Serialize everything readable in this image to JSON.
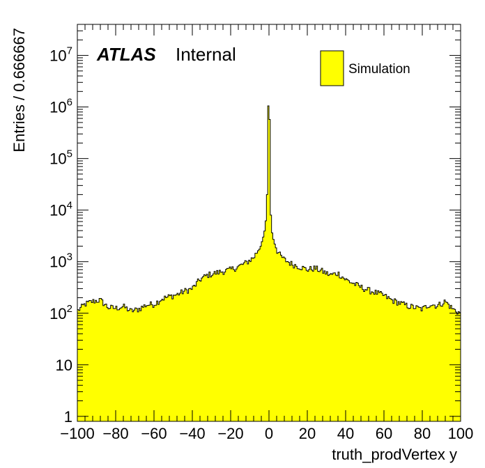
{
  "chart_data": {
    "type": "histogram",
    "scale_y": "log",
    "xlabel": "truth_prodVertex y",
    "ylabel": "Entries / 0.666667",
    "xlim": [
      -100,
      100
    ],
    "ylim": [
      0.8,
      40000000
    ],
    "x_ticks": [
      -100,
      -80,
      -60,
      -40,
      -20,
      0,
      20,
      40,
      60,
      80,
      100
    ],
    "y_ticks": [
      {
        "value": 1,
        "base": "1",
        "exp": ""
      },
      {
        "value": 10,
        "base": "10",
        "exp": ""
      },
      {
        "value": 100,
        "base": "10",
        "exp": "2"
      },
      {
        "value": 1000,
        "base": "10",
        "exp": "3"
      },
      {
        "value": 10000,
        "base": "10",
        "exp": "4"
      },
      {
        "value": 100000,
        "base": "10",
        "exp": "5"
      },
      {
        "value": 1000000,
        "base": "10",
        "exp": "6"
      },
      {
        "value": 10000000,
        "base": "10",
        "exp": "7"
      }
    ],
    "bin_width": 0.666667,
    "atlas_label": "ATLAS",
    "status_label": "Internal",
    "legend": {
      "label": "Simulation",
      "color": "#ffff00",
      "position": "top-right"
    },
    "fill_color": "#ffff00",
    "line_color": "#000000",
    "profile": {
      "x": [
        -100,
        -96,
        -92,
        -88,
        -84,
        -80,
        -76,
        -72,
        -68,
        -64,
        -60,
        -56,
        -52,
        -48,
        -44,
        -40,
        -36,
        -32,
        -28,
        -24,
        -20,
        -16,
        -12,
        -8,
        -6,
        -4,
        -3,
        -2,
        -1.4,
        -1,
        -0.6,
        -0.3,
        0,
        0.3,
        0.6,
        1,
        1.4,
        2,
        3,
        4,
        6,
        8,
        12,
        16,
        20,
        24,
        28,
        32,
        36,
        40,
        44,
        48,
        52,
        56,
        60,
        64,
        68,
        72,
        76,
        80,
        84,
        88,
        92,
        96,
        100
      ],
      "y": [
        110,
        150,
        170,
        180,
        130,
        125,
        135,
        110,
        120,
        145,
        150,
        190,
        210,
        230,
        270,
        300,
        450,
        550,
        600,
        650,
        700,
        800,
        950,
        1200,
        1600,
        2200,
        3000,
        4500,
        8000,
        20000,
        60000,
        1500000,
        3000000,
        800000,
        40000,
        8000,
        4200,
        3000,
        2200,
        1700,
        1300,
        1100,
        900,
        800,
        700,
        750,
        650,
        550,
        600,
        450,
        380,
        320,
        280,
        250,
        220,
        180,
        160,
        140,
        130,
        120,
        150,
        140,
        170,
        120,
        100
      ]
    }
  }
}
